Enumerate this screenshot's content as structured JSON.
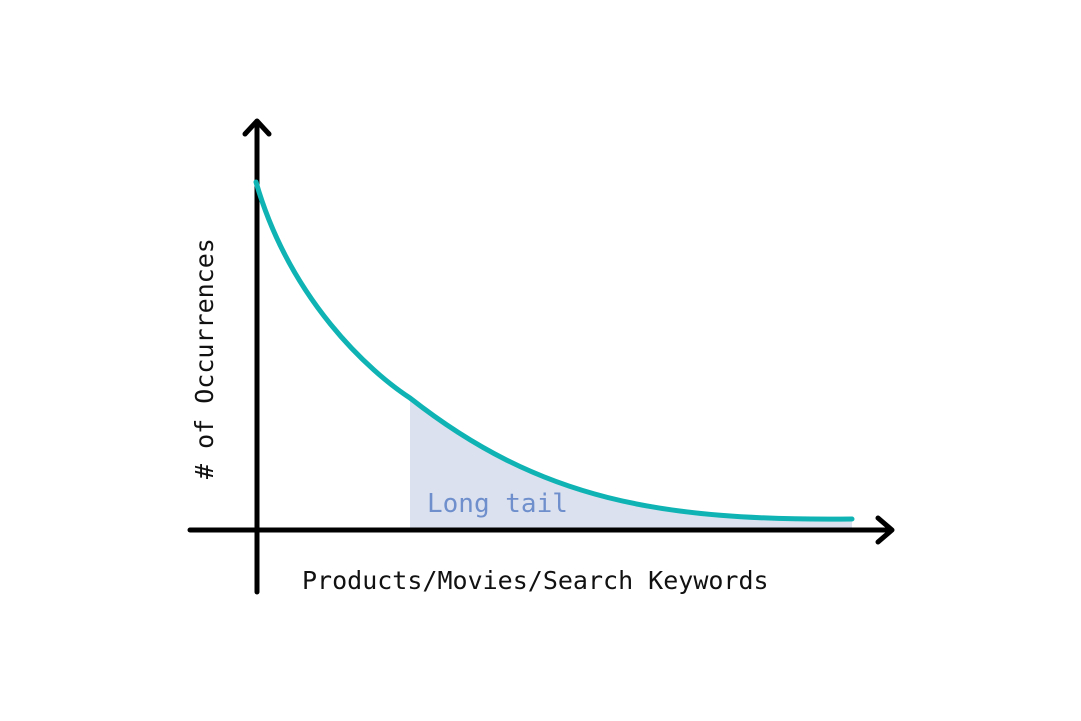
{
  "diagram": {
    "x_axis_label": "Products/Movies/Search Keywords",
    "y_axis_label": "# of Occurrences",
    "region_label": "Long tail",
    "colors": {
      "curve": "#0fb3b3",
      "tail_fill": "#dbe1ef",
      "tail_label": "#6e8fcc",
      "axes": "#000000"
    }
  }
}
